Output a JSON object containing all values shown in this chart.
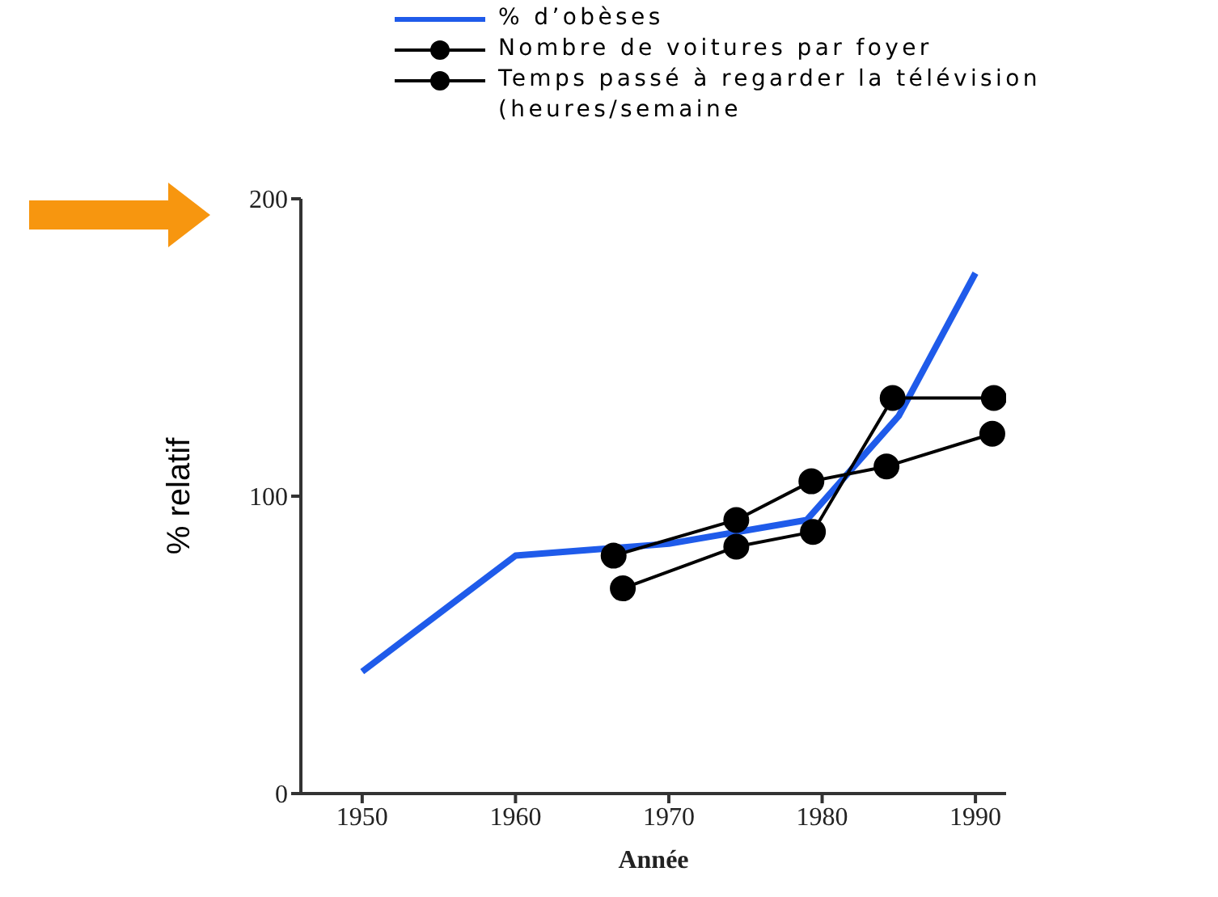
{
  "chart_data": {
    "type": "line",
    "xlabel": "Année",
    "ylabel": "% relatif",
    "xlim": [
      1946,
      1992
    ],
    "xticks": [
      1950,
      1960,
      1970,
      1980,
      1990
    ],
    "ylim": [
      0,
      200
    ],
    "yticks": [
      0,
      100,
      200
    ],
    "grid": false,
    "legend": "top right",
    "line_style": "solid",
    "series": [
      {
        "name": "% d’obèses",
        "color": "#1f5bea",
        "marker": "none",
        "x": [
          1950,
          1960,
          1970,
          1979,
          1985,
          1990
        ],
        "values": [
          41,
          80,
          84,
          92,
          127,
          175
        ]
      },
      {
        "name": "Nombre de voitures par foyer",
        "color": "#000000",
        "marker": "circle",
        "x": [
          1966.4,
          1974.4,
          1979.3,
          1984.2,
          1991.1
        ],
        "values": [
          80,
          92,
          105,
          110,
          121
        ]
      },
      {
        "name": "Temps passé à regarder la télévision (heures/semaine",
        "color": "#000000",
        "marker": "circle",
        "x": [
          1967,
          1974.4,
          1979.4,
          1984.6,
          1991.2
        ],
        "values": [
          69,
          83,
          88,
          133,
          133
        ]
      }
    ]
  }
}
